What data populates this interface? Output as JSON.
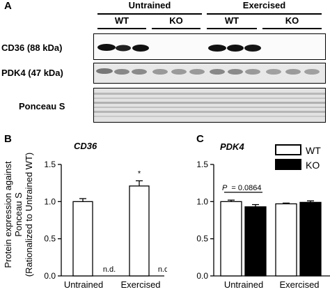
{
  "panel_a": {
    "letter": "A",
    "groups": [
      "Untrained",
      "Exercised"
    ],
    "genotypes": [
      "WT",
      "KO",
      "WT",
      "KO"
    ],
    "rows": [
      "CD36 (88 kDa)",
      "PDK4 (47 kDa)",
      "Ponceau S"
    ]
  },
  "chart_data": [
    {
      "type": "bar",
      "panel": "B",
      "title": "CD36",
      "categories": [
        "Untrained",
        "Exercised"
      ],
      "series": [
        {
          "name": "WT",
          "values": [
            1.0,
            1.21
          ],
          "errors": [
            0.04,
            0.07
          ]
        },
        {
          "name": "KO",
          "values": [
            null,
            null
          ],
          "labels": [
            "n.d.",
            "n.d."
          ]
        }
      ],
      "ylabel": "Protein expression against Ponceau S (Rationalized to Untrained WT)",
      "ylabel_lines": [
        "Protein expression against",
        "Ponceau S",
        "(Rationalized to Untrained WT)"
      ],
      "ylim": [
        0,
        1.5
      ],
      "yticks": [
        "0.0",
        "0.5",
        "1.0",
        "1.5"
      ],
      "annotation": "*",
      "nd_label": "n.d."
    },
    {
      "type": "bar",
      "panel": "C",
      "title": "PDK4",
      "categories": [
        "Untrained",
        "Exercised"
      ],
      "series": [
        {
          "name": "WT",
          "values": [
            1.0,
            0.97
          ],
          "errors": [
            0.02,
            0.01
          ]
        },
        {
          "name": "KO",
          "values": [
            0.93,
            0.99
          ],
          "errors": [
            0.03,
            0.02
          ]
        }
      ],
      "ylim": [
        0,
        1.5
      ],
      "yticks": [
        "0.0",
        "0.5",
        "1.0",
        "1.5"
      ],
      "p_label": "P",
      "p_value": "= 0.0864",
      "legend": [
        "WT",
        "KO"
      ],
      "colors": {
        "WT": "#ffffff",
        "KO": "#000000"
      }
    }
  ]
}
